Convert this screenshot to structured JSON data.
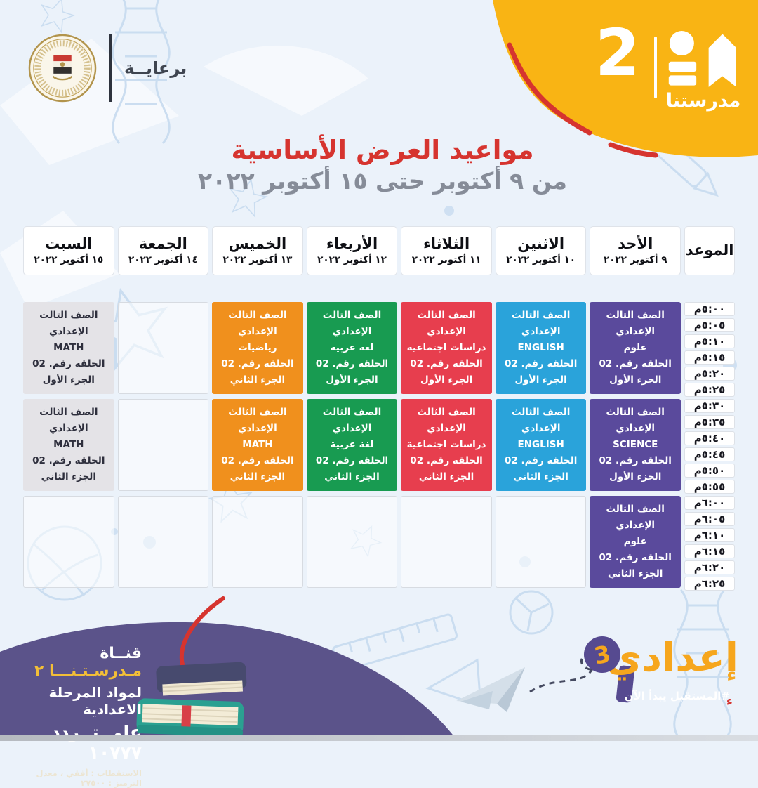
{
  "sponsor": {
    "label": "برعايــة"
  },
  "brand": {
    "channel_number": "2",
    "channel_name": "مدرستنا"
  },
  "title": {
    "main": "مواعيد العرض الأساسية",
    "date_range": "من ٩ أكتوبر حتى ١٥ أكتوبر ٢٠٢٢"
  },
  "schedule": {
    "time_header_label": "الموعد",
    "days": [
      {
        "name": "الأحد",
        "date": "٩ أكتوبر ٢٠٢٢"
      },
      {
        "name": "الاثنين",
        "date": "١٠ أكتوبر ٢٠٢٢"
      },
      {
        "name": "الثلاثاء",
        "date": "١١ أكتوبر ٢٠٢٢"
      },
      {
        "name": "الأربعاء",
        "date": "١٢ أكتوبر ٢٠٢٢"
      },
      {
        "name": "الخميس",
        "date": "١٣ أكتوبر ٢٠٢٢"
      },
      {
        "name": "الجمعة",
        "date": "١٤ أكتوبر ٢٠٢٢"
      },
      {
        "name": "السبت",
        "date": "١٥ أكتوبر ٢٠٢٢"
      }
    ],
    "rows": [
      {
        "times": [
          "٥:٠٠م",
          "٥:٠٥م",
          "٥:١٠م",
          "٥:١٥م",
          "٥:٢٠م",
          "٥:٢٥م"
        ],
        "cells": [
          {
            "day": "الأحد",
            "color": "purple",
            "lines": [
              "الصف الثالث الإعدادي",
              "علوم",
              "الحلقة رقم. 02",
              "الجزء الأول"
            ]
          },
          {
            "day": "الاثنين",
            "color": "blue",
            "lines": [
              "الصف الثالث الإعدادي",
              "ENGLISH",
              "الحلقة رقم. 02",
              "الجزء الأول"
            ]
          },
          {
            "day": "الثلاثاء",
            "color": "red",
            "lines": [
              "الصف الثالث الإعدادي",
              "دراسات اجتماعية",
              "الحلقة رقم. 02",
              "الجزء الأول"
            ]
          },
          {
            "day": "الأربعاء",
            "color": "green",
            "lines": [
              "الصف الثالث الإعدادي",
              "لغة عربية",
              "الحلقة رقم. 02",
              "الجزء الأول"
            ]
          },
          {
            "day": "الخميس",
            "color": "orange",
            "lines": [
              "الصف الثالث الإعدادي",
              "رياضيات",
              "الحلقة رقم. 02",
              "الجزء الثاني"
            ]
          },
          null,
          {
            "day": "السبت",
            "color": "grey",
            "lines": [
              "الصف الثالث الإعدادي",
              "MATH",
              "الحلقة رقم. 02",
              "الجزء الأول"
            ]
          }
        ]
      },
      {
        "times": [
          "٥:٣٠م",
          "٥:٣٥م",
          "٥:٤٠م",
          "٥:٤٥م",
          "٥:٥٠م",
          "٥:٥٥م"
        ],
        "cells": [
          {
            "day": "الأحد",
            "color": "purple",
            "lines": [
              "الصف الثالث الإعدادي",
              "SCIENCE",
              "الحلقة رقم. 02",
              "الجزء الأول"
            ]
          },
          {
            "day": "الاثنين",
            "color": "blue",
            "lines": [
              "الصف الثالث الإعدادي",
              "ENGLISH",
              "الحلقة رقم. 02",
              "الجزء الثاني"
            ]
          },
          {
            "day": "الثلاثاء",
            "color": "red",
            "lines": [
              "الصف الثالث الإعدادي",
              "دراسات اجتماعية",
              "الحلقة رقم. 02",
              "الجزء الثاني"
            ]
          },
          {
            "day": "الأربعاء",
            "color": "green",
            "lines": [
              "الصف الثالث الإعدادي",
              "لغة عربية",
              "الحلقة رقم. 02",
              "الجزء الثاني"
            ]
          },
          {
            "day": "الخميس",
            "color": "orange",
            "lines": [
              "الصف الثالث الإعدادي",
              "MATH",
              "الحلقة رقم. 02",
              "الجزء الثاني"
            ]
          },
          null,
          {
            "day": "السبت",
            "color": "grey",
            "lines": [
              "الصف الثالث الإعدادي",
              "MATH",
              "الحلقة رقم. 02",
              "الجزء الثاني"
            ]
          }
        ]
      },
      {
        "times": [
          "٦:٠٠م",
          "٦:٠٥م",
          "٦:١٠م",
          "٦:١٥م",
          "٦:٢٠م",
          "٦:٢٥م"
        ],
        "cells": [
          {
            "day": "الأحد",
            "color": "purple",
            "lines": [
              "الصف الثالث الإعدادي",
              "علوم",
              "الحلقة رقم. 02",
              "الجزء الثاني"
            ]
          },
          null,
          null,
          null,
          null,
          null,
          null
        ]
      }
    ]
  },
  "footer_left": {
    "line1_white": "قنــاة",
    "line1_yellow": "مـدرسـتـنـــا ٢",
    "line2": "لمواد المرحلة الاعدادية",
    "line3": "على تــردد ١٠٧٧٧",
    "line4": "الاستقطاب : أفقي ، معدل الترميز : ٢٧٥٠٠"
  },
  "footer_right": {
    "logo_text": "إعدادي",
    "logo_number": "3",
    "hashtag": "#المستقبل يبدأ الآن",
    "hamza": "ء"
  },
  "colors": {
    "purple": "#5a4a9c",
    "blue": "#2aa3da",
    "red": "#e73e4e",
    "green": "#189b51",
    "orange": "#f0901d",
    "grey": "#e4e3e7",
    "accent_red": "#d6342f",
    "brand_yellow": "#f9b414",
    "footer_purple": "#5b538a"
  }
}
